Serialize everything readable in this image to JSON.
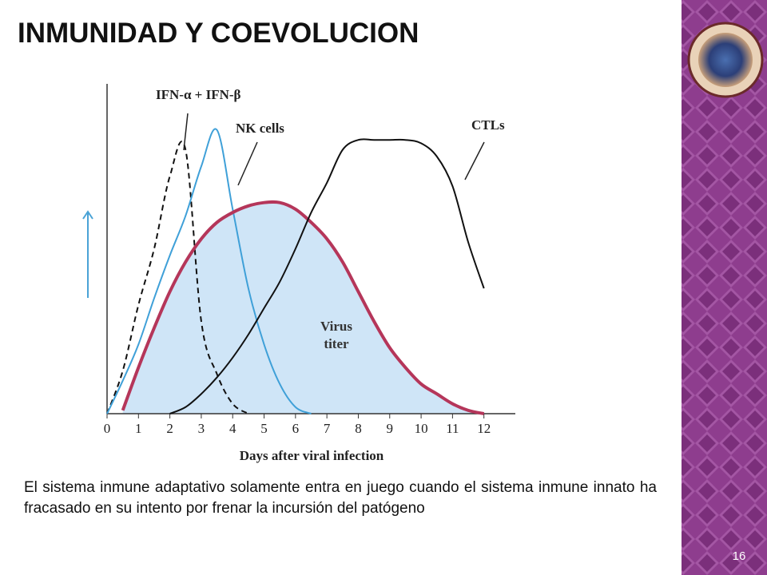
{
  "title": "INMUNIDAD Y COEVOLUCION",
  "chart_data": {
    "type": "line",
    "x_label": "Days after viral infection",
    "x": [
      0,
      0.5,
      1,
      1.5,
      2,
      2.5,
      3,
      3.5,
      4,
      4.5,
      5,
      5.5,
      6,
      6.5,
      7,
      7.5,
      8,
      8.5,
      9,
      9.5,
      10,
      10.5,
      11,
      11.5,
      12
    ],
    "xlim": [
      0,
      13
    ],
    "xticks": [
      0,
      1,
      2,
      3,
      4,
      5,
      6,
      7,
      8,
      9,
      10,
      11,
      12
    ],
    "ylim": [
      0,
      100
    ],
    "series": [
      {
        "name": "IFN-α + IFN-β",
        "color": "#111111",
        "dashed": true,
        "values": [
          0,
          13,
          33,
          50,
          72,
          80,
          28,
          12,
          3,
          0,
          null,
          null,
          null,
          null,
          null,
          null,
          null,
          null,
          null,
          null,
          null,
          null,
          null,
          null,
          null
        ]
      },
      {
        "name": "NK cells",
        "color": "#3fa0d8",
        "values": [
          0,
          10,
          21,
          35,
          48,
          60,
          75,
          86,
          62,
          38,
          21,
          9,
          2,
          0,
          null,
          null,
          null,
          null,
          null,
          null,
          null,
          null,
          null,
          null,
          null
        ]
      },
      {
        "name": "Virus titer",
        "color": "#b5365a",
        "fill": "#cfe5f7",
        "values": [
          null,
          1,
          14,
          26,
          37,
          46,
          53,
          58,
          61,
          63,
          64,
          64,
          62,
          58,
          53,
          46,
          37,
          28,
          20,
          14,
          9,
          6,
          3,
          1,
          0
        ]
      },
      {
        "name": "CTLs",
        "color": "#111111",
        "values": [
          null,
          null,
          null,
          null,
          0,
          2,
          6,
          11,
          17,
          24,
          32,
          40,
          50,
          61,
          70,
          80,
          83,
          83,
          83,
          83,
          82,
          78,
          69,
          52,
          38
        ]
      }
    ]
  },
  "body_text": "El sistema inmune adaptativo solamente entra en juego cuando el sistema inmune innato ha fracasado en su intento por frenar la incursión del patógeno",
  "slide_number": "16"
}
